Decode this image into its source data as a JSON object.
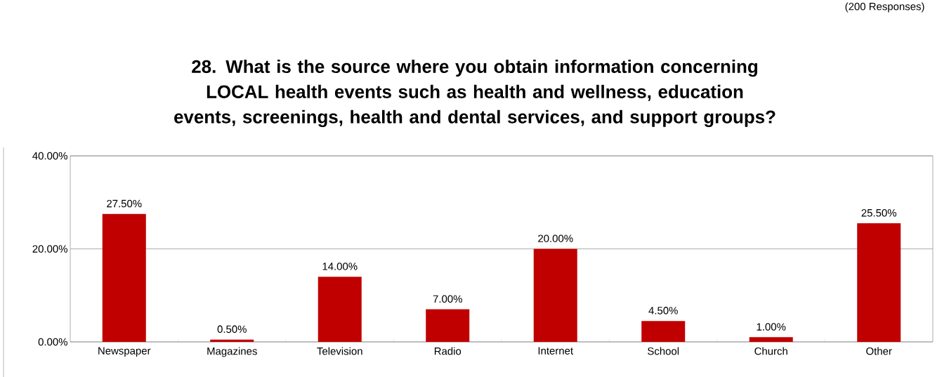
{
  "chart_data": {
    "type": "bar",
    "title": "28.  What is the source where you obtain information concerning LOCAL health events such as health and wellness, education events, screenings, health and dental services, and support groups?",
    "annotations": [
      "(200 Responses)"
    ],
    "categories": [
      "Newspaper",
      "Magazines",
      "Television",
      "Radio",
      "Internet",
      "School",
      "Church",
      "Other"
    ],
    "values": [
      27.5,
      0.5,
      14.0,
      7.0,
      20.0,
      4.5,
      1.0,
      25.5
    ],
    "value_labels": [
      "27.50%",
      "0.50%",
      "14.00%",
      "7.00%",
      "20.00%",
      "4.50%",
      "1.00%",
      "25.50%"
    ],
    "color": "#c00000",
    "ylim": [
      0,
      40
    ],
    "yticks": [
      {
        "value": 0,
        "label": "0.00%"
      },
      {
        "value": 20,
        "label": "20.00%"
      },
      {
        "value": 40,
        "label": "40.00%"
      }
    ],
    "grid": "y"
  }
}
